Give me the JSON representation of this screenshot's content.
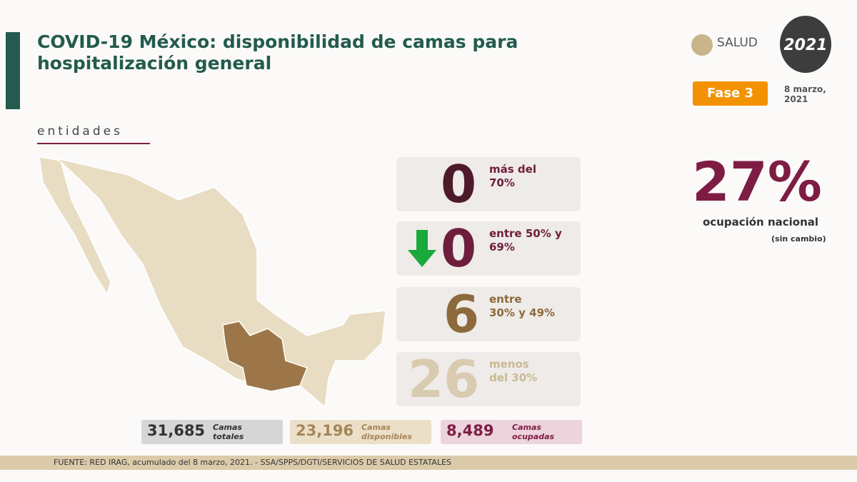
{
  "header": {
    "title_lines": [
      "COVID-19 México: disponibilidad de camas para",
      "hospitalización general"
    ],
    "logo": "SALUD",
    "emblem": "2021",
    "badge": "Fase 3",
    "date_lines": [
      "8 marzo,",
      "2021"
    ]
  },
  "section": "entidades",
  "cards": [
    {
      "value": "0",
      "label_lines": [
        "más del",
        "70%"
      ]
    },
    {
      "value": "0",
      "label_lines": [
        "entre 50% y",
        "69%"
      ]
    },
    {
      "value": "6",
      "label_lines": [
        "entre",
        "30% y 49%"
      ]
    },
    {
      "value": "26",
      "label_lines": [
        "menos",
        "del 30%"
      ]
    }
  ],
  "national": {
    "value": "27%",
    "label": "ocupación nacional",
    "note": "(sin cambio)"
  },
  "totals": [
    {
      "value": "31,685",
      "label_lines": [
        "Camas",
        "totales"
      ]
    },
    {
      "value": "23,196",
      "label_lines": [
        "Camas",
        "disponibles"
      ]
    },
    {
      "value": "8,489",
      "label_lines": [
        "Camas",
        "ocupadas"
      ]
    }
  ],
  "footer": "FUENTE: RED IRAG, acumulado del 8 marzo, 2021. -  SSA/SPPS/DGTI/SERVICIOS DE SALUD ESTATALES"
}
